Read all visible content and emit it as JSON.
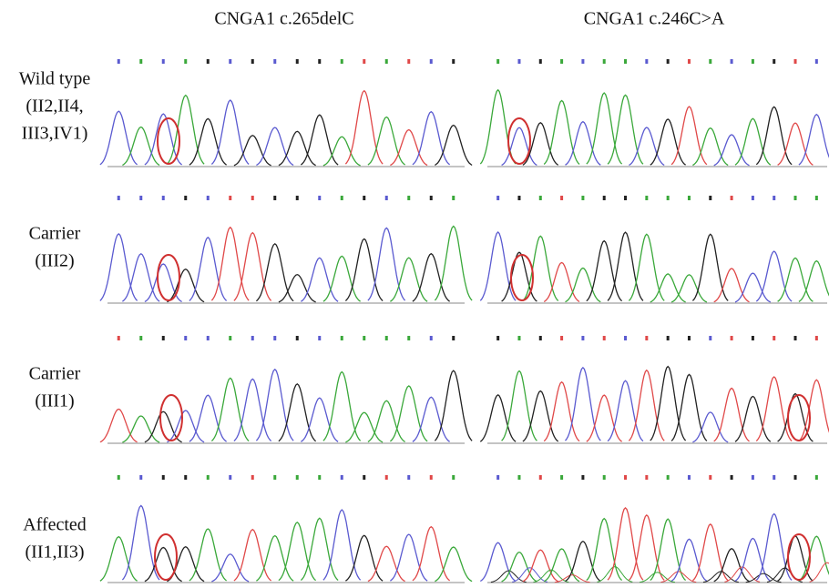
{
  "columns": [
    "CNGA1 c.265delC",
    "CNGA1 c.246C>A"
  ],
  "rows": [
    {
      "lines": [
        "Wild type",
        "(II2,II4,",
        "III3,IV1)"
      ]
    },
    {
      "lines": [
        "Carrier",
        "(III2)"
      ]
    },
    {
      "lines": [
        "Carrier",
        "(III1)"
      ]
    },
    {
      "lines": [
        "Affected",
        "(II1,II3)"
      ]
    }
  ]
}
